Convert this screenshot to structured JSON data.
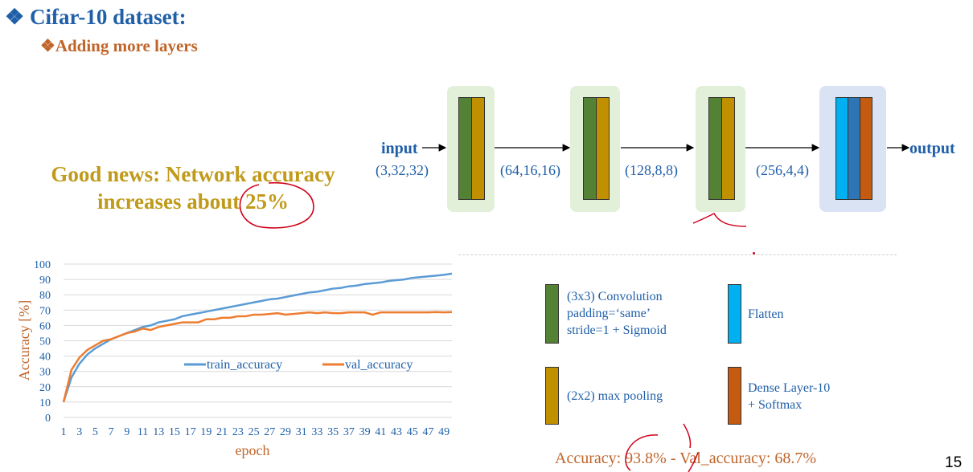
{
  "slide": {
    "title": "❖ Cifar-10 dataset:",
    "subtitle": "❖Adding more layers",
    "good_news_line1": "Good news: Network accuracy",
    "good_news_line2": "increases about 25%",
    "page_number": "15",
    "accuracy_summary": "Accuracy: 93.8% - Val_accuracy: 68.7%"
  },
  "diagram": {
    "input_label": "input",
    "output_label": "output",
    "shapes": [
      "(3,32,32)",
      "(64,16,16)",
      "(128,8,8)",
      "(256,4,4)"
    ],
    "colors": {
      "conv": "#548235",
      "pool": "#c09000",
      "flatten": "#00b0f0",
      "dense_mid": "#2e75b6",
      "dense": "#c55a11",
      "block_green": "#e2efd9",
      "block_blue": "#dae3f3"
    }
  },
  "legend": {
    "conv_lines": [
      "(3x3) Convolution",
      "padding=‘same’",
      "stride=1 + Sigmoid"
    ],
    "flatten": "Flatten",
    "pool": "(2x2) max pooling",
    "dense_lines": [
      "Dense Layer-10",
      "+ Softmax"
    ]
  },
  "chart_data": {
    "type": "line",
    "xlabel": "epoch",
    "ylabel": "Accuracy [%]",
    "ylim": [
      0,
      100
    ],
    "yticks": [
      0,
      10,
      20,
      30,
      40,
      50,
      60,
      70,
      80,
      90,
      100
    ],
    "x": [
      1,
      2,
      3,
      4,
      5,
      6,
      7,
      8,
      9,
      10,
      11,
      12,
      13,
      14,
      15,
      16,
      17,
      18,
      19,
      20,
      21,
      22,
      23,
      24,
      25,
      26,
      27,
      28,
      29,
      30,
      31,
      32,
      33,
      34,
      35,
      36,
      37,
      38,
      39,
      40,
      41,
      42,
      43,
      44,
      45,
      46,
      47,
      48,
      49,
      50
    ],
    "xticks": [
      1,
      3,
      5,
      7,
      9,
      11,
      13,
      15,
      17,
      19,
      21,
      23,
      25,
      27,
      29,
      31,
      33,
      35,
      37,
      39,
      41,
      43,
      45,
      47,
      49
    ],
    "grid": true,
    "legend_position": "middle",
    "series": [
      {
        "name": "train_accuracy",
        "color": "#5b9bd5",
        "values": [
          10,
          26,
          35,
          41,
          45,
          48,
          51,
          53,
          55,
          57,
          59,
          60,
          62,
          63,
          64,
          66,
          67,
          68,
          69,
          70,
          71,
          72,
          73,
          74,
          75,
          76,
          77,
          77.5,
          78.5,
          79.5,
          80.5,
          81.5,
          82,
          83,
          84,
          84.5,
          85.5,
          86,
          87,
          87.5,
          88,
          89,
          89.5,
          90,
          91,
          91.5,
          92,
          92.5,
          93,
          93.8
        ]
      },
      {
        "name": "val_accuracy",
        "color": "#ed7d31",
        "values": [
          10,
          31,
          39,
          44,
          47,
          50,
          51,
          53,
          55,
          56,
          58,
          57,
          59,
          60,
          61,
          62,
          62,
          62,
          64,
          64,
          65,
          65,
          66,
          66,
          67,
          67,
          67.5,
          68,
          67,
          67.5,
          68,
          68.5,
          68,
          68.5,
          68,
          68,
          68.5,
          68.5,
          68.5,
          67,
          68.5,
          68.5,
          68.5,
          68.5,
          68.5,
          68.5,
          68.5,
          68.7,
          68.5,
          68.7
        ]
      }
    ]
  }
}
